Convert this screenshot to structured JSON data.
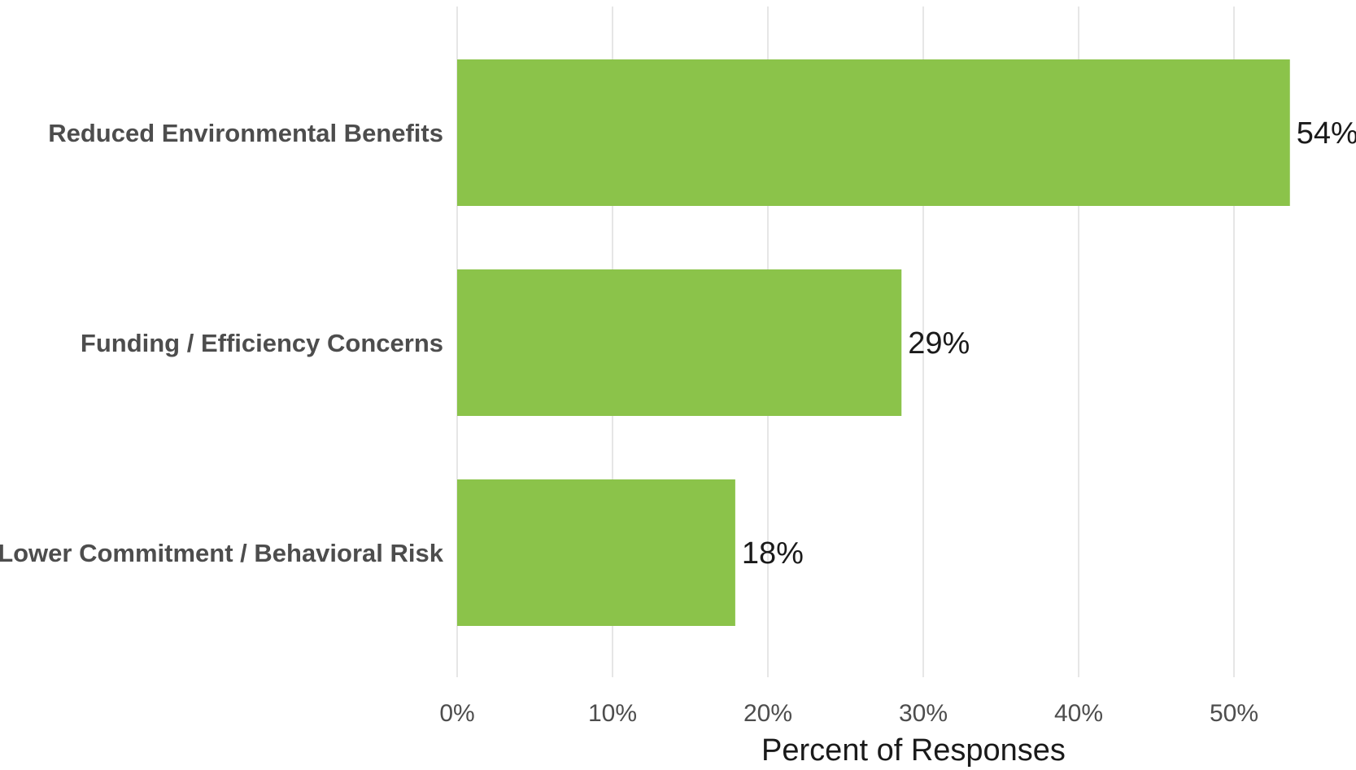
{
  "chart_data": {
    "type": "bar",
    "orientation": "horizontal",
    "categories": [
      "Reduced Environmental Benefits",
      "Funding / Efficiency Concerns",
      "Lower Commitment / Behavioral Risk"
    ],
    "values": [
      53.6,
      28.6,
      17.9
    ],
    "value_labels": [
      "54%",
      "29%",
      "18%"
    ],
    "xlabel": "Percent of Responses",
    "ylabel": "",
    "xlim": [
      0,
      58
    ],
    "x_ticks": [
      0,
      10,
      20,
      30,
      40,
      50
    ],
    "x_tick_labels": [
      "0%",
      "10%",
      "20%",
      "30%",
      "40%",
      "50%"
    ],
    "grid": "vertical",
    "bar_color": "#8bc34a"
  }
}
